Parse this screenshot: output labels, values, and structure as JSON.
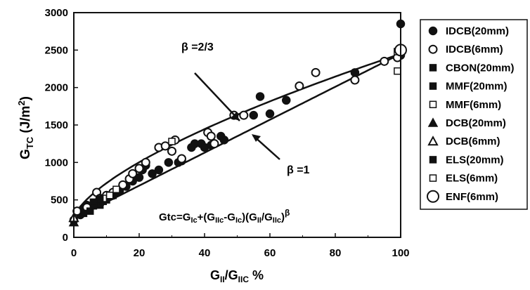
{
  "chart_data": {
    "type": "scatter",
    "xlabel": "GII/GIIC %",
    "ylabel": "GTC (J/m2)",
    "xlim": [
      0,
      100
    ],
    "ylim": [
      0,
      3000
    ],
    "x_ticks": [
      0,
      20,
      40,
      60,
      80,
      100
    ],
    "y_ticks": [
      0,
      500,
      1000,
      1500,
      2000,
      2500,
      3000
    ],
    "x_tick_labels": [
      "0",
      "20",
      "40",
      "60",
      "80",
      "100"
    ],
    "y_tick_labels": [
      "0",
      "500",
      "1000",
      "1500",
      "2000",
      "2500",
      "3000"
    ],
    "grid": false,
    "legend_position": "right",
    "annotations": {
      "beta_two_thirds": "β =2/3",
      "beta_one": "β =1",
      "formula": "Gtc=GIc+(GIIc-GIc)(GII/GIIc)β"
    },
    "curves": [
      {
        "beta": 0.6667,
        "gic": 250,
        "giic": 2450
      },
      {
        "beta": 1,
        "gic": 250,
        "giic": 2450
      }
    ],
    "series": [
      {
        "name": "IDCB(20mm)",
        "marker": "filled-circle",
        "points": [
          [
            0,
            230
          ],
          [
            2,
            300
          ],
          [
            3,
            380
          ],
          [
            4,
            430
          ],
          [
            8,
            450
          ],
          [
            10,
            520
          ],
          [
            12,
            560
          ],
          [
            13,
            600
          ],
          [
            14,
            620
          ],
          [
            15,
            700
          ],
          [
            16,
            680
          ],
          [
            18,
            750
          ],
          [
            20,
            800
          ],
          [
            21,
            900
          ],
          [
            22,
            960
          ],
          [
            24,
            850
          ],
          [
            26,
            900
          ],
          [
            29,
            1000
          ],
          [
            30,
            1150
          ],
          [
            32,
            1000
          ],
          [
            33,
            1020
          ],
          [
            36,
            1200
          ],
          [
            37,
            1250
          ],
          [
            39,
            1250
          ],
          [
            40,
            1200
          ],
          [
            42,
            1230
          ],
          [
            45,
            1350
          ],
          [
            46,
            1300
          ],
          [
            55,
            1630
          ],
          [
            57,
            1880
          ],
          [
            60,
            1650
          ],
          [
            65,
            1830
          ],
          [
            86,
            2200
          ],
          [
            100,
            2430
          ],
          [
            100,
            2850
          ]
        ]
      },
      {
        "name": "IDCB(6mm)",
        "marker": "open-circle",
        "points": [
          [
            1,
            350
          ],
          [
            4,
            400
          ],
          [
            7,
            600
          ],
          [
            8,
            520
          ],
          [
            10,
            560
          ],
          [
            12,
            600
          ],
          [
            15,
            700
          ],
          [
            17,
            780
          ],
          [
            18,
            850
          ],
          [
            20,
            920
          ],
          [
            22,
            1000
          ],
          [
            26,
            1200
          ],
          [
            28,
            1220
          ],
          [
            30,
            1150
          ],
          [
            31,
            1300
          ],
          [
            33,
            1050
          ],
          [
            41,
            1400
          ],
          [
            42,
            1350
          ],
          [
            43,
            1250
          ],
          [
            49,
            1630
          ],
          [
            52,
            1630
          ],
          [
            69,
            2020
          ],
          [
            74,
            2200
          ],
          [
            86,
            2100
          ],
          [
            95,
            2350
          ],
          [
            99,
            2400
          ]
        ]
      },
      {
        "name": "CBON(20mm)",
        "marker": "filled-square",
        "points": [
          [
            3,
            320
          ],
          [
            5,
            350
          ],
          [
            8,
            430
          ],
          [
            10,
            500
          ]
        ]
      },
      {
        "name": "MMF(20mm)",
        "marker": "filled-square",
        "points": [
          [
            6,
            420
          ],
          [
            9,
            480
          ],
          [
            12,
            560
          ]
        ]
      },
      {
        "name": "MMF(6mm)",
        "marker": "open-square",
        "points": [
          [
            9,
            520
          ],
          [
            11,
            560
          ],
          [
            13,
            640
          ],
          [
            30,
            1280
          ]
        ]
      },
      {
        "name": "DCB(20mm)",
        "marker": "filled-triangle",
        "points": [
          [
            0,
            200
          ]
        ]
      },
      {
        "name": "DCB(6mm)",
        "marker": "open-triangle",
        "points": [
          [
            0,
            260
          ]
        ]
      },
      {
        "name": "ELS(20mm)",
        "marker": "filled-square",
        "points": [
          [
            6,
            470
          ],
          [
            8,
            510
          ]
        ]
      },
      {
        "name": "ELS(6mm)",
        "marker": "open-square",
        "points": [
          [
            99,
            2220
          ],
          [
            99,
            2480
          ]
        ]
      },
      {
        "name": "ENF(6mm)",
        "marker": "large-open-circle",
        "points": [
          [
            100,
            2500
          ]
        ]
      }
    ]
  }
}
